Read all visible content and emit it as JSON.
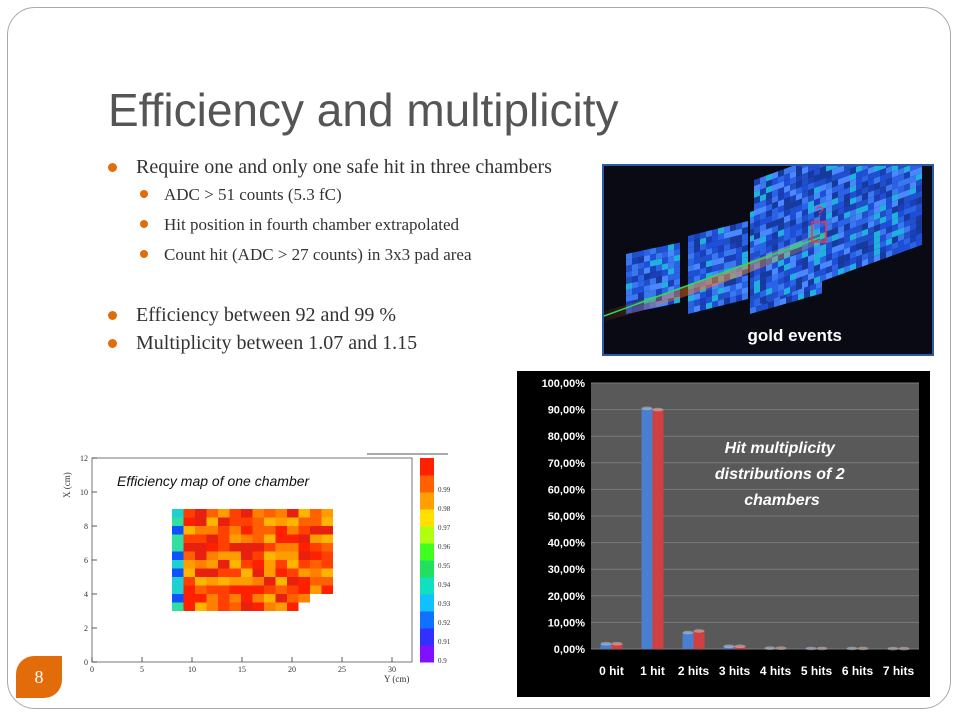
{
  "slide": {
    "title": "Efficiency and multiplicity",
    "page_number": "8",
    "accent_color": "#e36c0a"
  },
  "bullets": {
    "b1": "Require one and only one safe hit in three chambers",
    "b1_sub": [
      "ADC > 51 counts (5.3 fC)",
      "Hit position in fourth chamber extrapolated",
      "Count hit (ADC > 27 counts) in 3x3 pad area"
    ],
    "b2": "Efficiency between 92 and 99 %",
    "b3": "Multiplicity between 1.07 and 1.15"
  },
  "gold_image": {
    "label": "gold events",
    "marker": "?"
  },
  "efficiency_map": {
    "caption": "Efficiency map of one chamber",
    "xlabel": "Y (cm)",
    "ylabel": "X (cm)",
    "x_ticks": [
      "0",
      "5",
      "10",
      "15",
      "20",
      "25",
      "30"
    ],
    "y_ticks": [
      "0",
      "2",
      "4",
      "6",
      "8",
      "10",
      "12"
    ],
    "scale_ticks": [
      "0.9",
      "0.91",
      "0.92",
      "0.93",
      "0.94",
      "0.95",
      "0.96",
      "0.97",
      "0.98",
      "0.99"
    ]
  },
  "chart_data": {
    "type": "bar",
    "title": "Hit multiplicity distributions of 2 chambers",
    "categories": [
      "0 hit",
      "1 hit",
      "2 hits",
      "3 hits",
      "4 hits",
      "5 hits",
      "6 hits",
      "7 hits"
    ],
    "series": [
      {
        "values": [
          2.0,
          90.5,
          6.2,
          1.0,
          0.3,
          0.2,
          0.2,
          0.1
        ],
        "color": "#4a7fd0"
      },
      {
        "values": [
          2.0,
          90.0,
          6.8,
          1.0,
          0.3,
          0.2,
          0.2,
          0.1
        ],
        "color": "#d04040"
      }
    ],
    "ylim": [
      0,
      100
    ],
    "y_ticks": [
      "0,00%",
      "10,00%",
      "20,00%",
      "30,00%",
      "40,00%",
      "50,00%",
      "60,00%",
      "70,00%",
      "80,00%",
      "90,00%",
      "100,00%"
    ],
    "grid": true
  }
}
